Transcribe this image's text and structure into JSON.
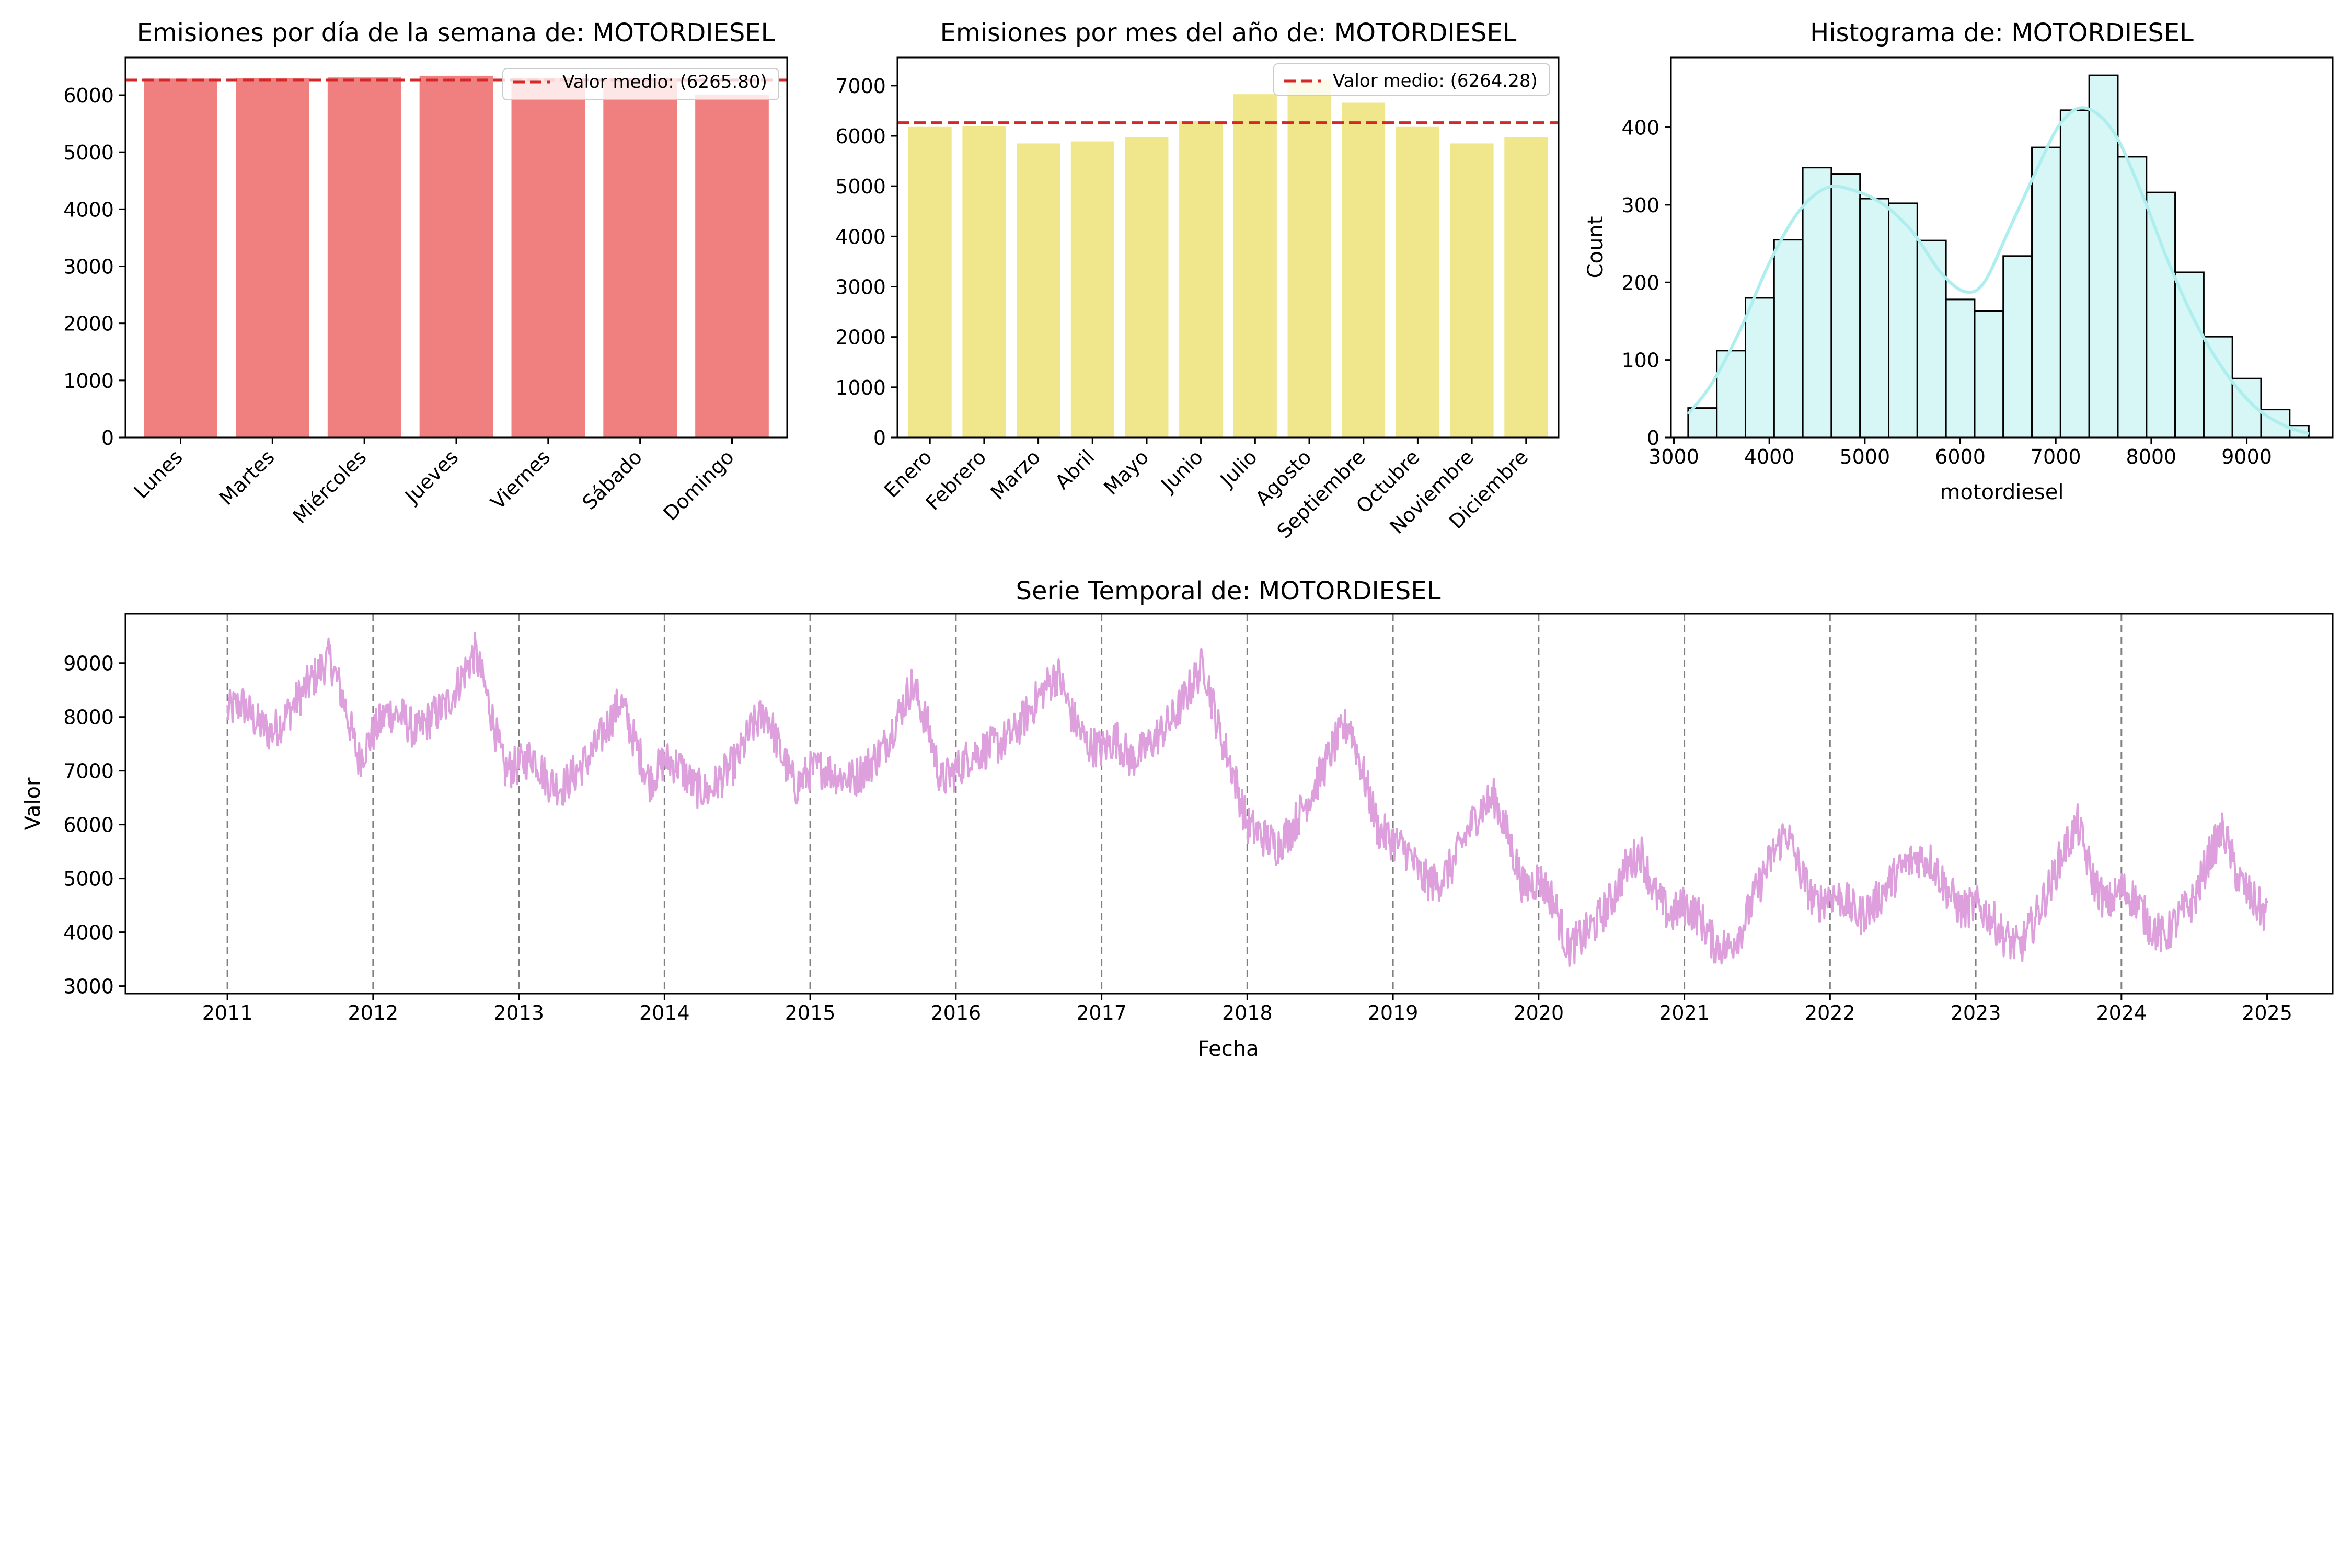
{
  "chart_data": [
    {
      "type": "bar",
      "title": "Emisiones por día de la semana de: MOTORDIESEL",
      "categories": [
        "Lunes",
        "Martes",
        "Miércoles",
        "Jueves",
        "Viernes",
        "Sábado",
        "Domingo"
      ],
      "values": [
        6290,
        6300,
        6310,
        6340,
        6300,
        6300,
        6010
      ],
      "ylim": [
        0,
        6660
      ],
      "yticks": [
        0,
        1000,
        2000,
        3000,
        4000,
        5000,
        6000
      ],
      "color": "#f08080",
      "mean_line": {
        "value": 6265.8,
        "label": "Valor medio: (6265.80)",
        "color": "#d62728"
      },
      "legend": "top-right"
    },
    {
      "type": "bar",
      "title": "Emisiones por mes del año de: MOTORDIESEL",
      "categories": [
        "Enero",
        "Febrero",
        "Marzo",
        "Abril",
        "Mayo",
        "Junio",
        "Julio",
        "Agosto",
        "Septiembre",
        "Octubre",
        "Noviembre",
        "Diciembre"
      ],
      "values": [
        6180,
        6190,
        5850,
        5890,
        5970,
        6290,
        6830,
        7120,
        6660,
        6180,
        5850,
        5970
      ],
      "ylim": [
        0,
        7560
      ],
      "yticks": [
        0,
        1000,
        2000,
        3000,
        4000,
        5000,
        6000,
        7000
      ],
      "color": "#f0e68c",
      "mean_line": {
        "value": 6264.28,
        "label": "Valor medio: (6264.28)",
        "color": "#d62728"
      },
      "legend": "top-right"
    },
    {
      "type": "histogram",
      "title": "Histograma de: MOTORDIESEL",
      "xlabel": "motordiesel",
      "ylabel": "Count",
      "bin_edges": [
        3150,
        3450,
        3750,
        4050,
        4350,
        4650,
        4950,
        5250,
        5550,
        5850,
        6150,
        6450,
        6750,
        7050,
        7350,
        7650,
        7950,
        8250,
        8550,
        8850,
        9150,
        9450,
        9650
      ],
      "counts": [
        38,
        112,
        180,
        255,
        348,
        340,
        308,
        302,
        254,
        178,
        163,
        234,
        374,
        422,
        467,
        362,
        316,
        213,
        130,
        76,
        36,
        15
      ],
      "kde": [
        [
          3150,
          30
        ],
        [
          3400,
          70
        ],
        [
          3700,
          140
        ],
        [
          4000,
          225
        ],
        [
          4300,
          290
        ],
        [
          4600,
          322
        ],
        [
          4900,
          318
        ],
        [
          5200,
          300
        ],
        [
          5500,
          265
        ],
        [
          5800,
          212
        ],
        [
          6050,
          188
        ],
        [
          6250,
          200
        ],
        [
          6500,
          265
        ],
        [
          6800,
          345
        ],
        [
          7050,
          405
        ],
        [
          7300,
          425
        ],
        [
          7600,
          395
        ],
        [
          7900,
          315
        ],
        [
          8200,
          220
        ],
        [
          8500,
          140
        ],
        [
          8800,
          80
        ],
        [
          9100,
          38
        ],
        [
          9400,
          15
        ],
        [
          9650,
          5
        ]
      ],
      "xlim": [
        2970,
        9900
      ],
      "ylim": [
        0,
        490
      ],
      "xticks": [
        3000,
        4000,
        5000,
        6000,
        7000,
        8000,
        9000
      ],
      "yticks": [
        0,
        100,
        200,
        300,
        400
      ],
      "color": "#afeeee"
    },
    {
      "type": "line",
      "title": "Serie Temporal de: MOTORDIESEL",
      "xlabel": "Fecha",
      "ylabel": "Valor",
      "ylim": [
        2860,
        9920
      ],
      "yticks": [
        3000,
        4000,
        5000,
        6000,
        7000,
        8000,
        9000
      ],
      "xlim_years": [
        2010.3,
        2025.45
      ],
      "xticks": [
        "2011",
        "2012",
        "2013",
        "2014",
        "2015",
        "2016",
        "2017",
        "2018",
        "2019",
        "2020",
        "2021",
        "2022",
        "2023",
        "2024",
        "2025"
      ],
      "year_lines": [
        2011,
        2012,
        2013,
        2014,
        2015,
        2016,
        2017,
        2018,
        2019,
        2020,
        2021,
        2022,
        2023,
        2024
      ],
      "color": "#dda0dd",
      "series": [
        {
          "date_start": "2011-01-01",
          "date_end": "2024-12-31",
          "x": [
            2011.0,
            2011.1,
            2011.2,
            2011.3,
            2011.4,
            2011.5,
            2011.6,
            2011.7,
            2011.8,
            2011.9,
            2012.0,
            2012.1,
            2012.2,
            2012.3,
            2012.4,
            2012.5,
            2012.6,
            2012.7,
            2012.8,
            2012.9,
            2013.0,
            2013.1,
            2013.2,
            2013.3,
            2013.4,
            2013.5,
            2013.6,
            2013.7,
            2013.8,
            2013.9,
            2014.0,
            2014.1,
            2014.2,
            2014.3,
            2014.4,
            2014.5,
            2014.6,
            2014.7,
            2014.8,
            2014.9,
            2015.0,
            2015.1,
            2015.2,
            2015.3,
            2015.4,
            2015.5,
            2015.6,
            2015.7,
            2015.8,
            2015.9,
            2016.0,
            2016.1,
            2016.2,
            2016.3,
            2016.4,
            2016.5,
            2016.6,
            2016.7,
            2016.8,
            2016.9,
            2017.0,
            2017.1,
            2017.2,
            2017.3,
            2017.4,
            2017.5,
            2017.6,
            2017.7,
            2017.8,
            2017.9,
            2018.0,
            2018.1,
            2018.2,
            2018.3,
            2018.4,
            2018.5,
            2018.6,
            2018.7,
            2018.8,
            2018.9,
            2019.0,
            2019.1,
            2019.2,
            2019.3,
            2019.4,
            2019.5,
            2019.6,
            2019.7,
            2019.8,
            2019.9,
            2020.0,
            2020.1,
            2020.2,
            2020.3,
            2020.4,
            2020.5,
            2020.6,
            2020.7,
            2020.8,
            2020.9,
            2021.0,
            2021.1,
            2021.2,
            2021.3,
            2021.4,
            2021.5,
            2021.6,
            2021.7,
            2021.8,
            2021.9,
            2022.0,
            2022.1,
            2022.2,
            2022.3,
            2022.4,
            2022.5,
            2022.6,
            2022.7,
            2022.8,
            2022.9,
            2023.0,
            2023.1,
            2023.2,
            2023.3,
            2023.4,
            2023.5,
            2023.6,
            2023.7,
            2023.8,
            2023.9,
            2024.0,
            2024.1,
            2024.2,
            2024.3,
            2024.4,
            2024.5,
            2024.6,
            2024.7,
            2024.8,
            2024.9,
            2025.0
          ],
          "y": [
            8100,
            8250,
            7900,
            7700,
            8000,
            8400,
            8750,
            9100,
            8300,
            7200,
            7700,
            8100,
            8000,
            7700,
            8000,
            8200,
            8700,
            9200,
            8200,
            7000,
            7100,
            7300,
            6800,
            6700,
            7000,
            7300,
            7800,
            8300,
            7500,
            6800,
            7200,
            7100,
            6700,
            6600,
            6900,
            7200,
            7800,
            8100,
            7300,
            6700,
            7000,
            7050,
            6900,
            6850,
            7100,
            7400,
            8000,
            8600,
            7900,
            6800,
            7000,
            7300,
            7400,
            7500,
            7700,
            8100,
            8500,
            8800,
            8000,
            7500,
            7400,
            7600,
            7200,
            7400,
            7700,
            8000,
            8500,
            9000,
            7800,
            7000,
            6000,
            5800,
            5600,
            5900,
            6400,
            6900,
            7500,
            7900,
            6900,
            5900,
            5700,
            5500,
            5000,
            4900,
            5200,
            5800,
            6300,
            6500,
            5700,
            4800,
            5000,
            4600,
            3700,
            3900,
            4200,
            4600,
            5200,
            5500,
            4700,
            4300,
            4500,
            4300,
            3800,
            3700,
            4100,
            4800,
            5400,
            5900,
            5100,
            4500,
            4700,
            4600,
            4300,
            4500,
            4900,
            5200,
            5400,
            5300,
            4800,
            4400,
            4500,
            4300,
            3900,
            3700,
            4200,
            4800,
            5500,
            6000,
            5000,
            4500,
            4800,
            4600,
            4100,
            3900,
            4300,
            4600,
            5400,
            5900,
            5000,
            4600,
            4300
          ]
        }
      ]
    }
  ]
}
